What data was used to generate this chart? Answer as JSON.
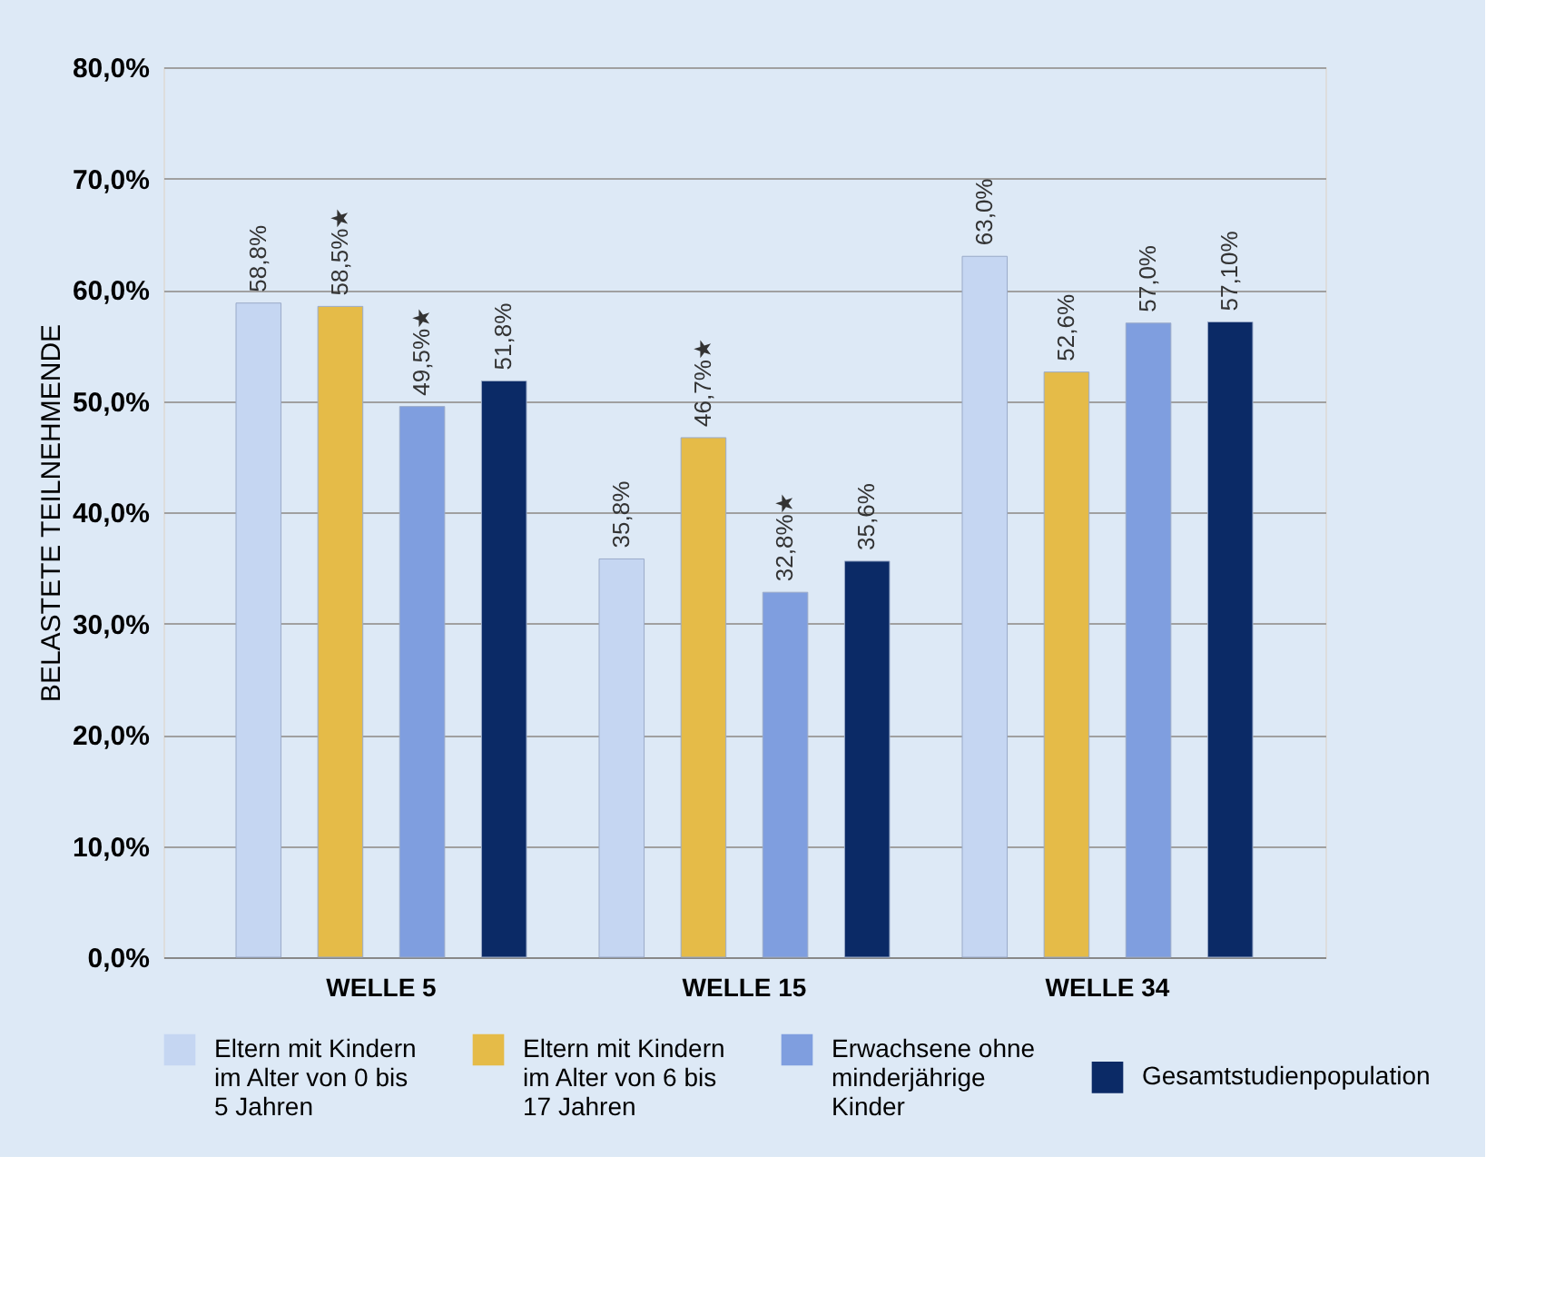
{
  "chart_data": {
    "type": "bar",
    "ylabel": "BELASTETE TEILNEHMENDE",
    "categories": [
      "WELLE 5",
      "WELLE 15",
      "WELLE 34"
    ],
    "series": [
      {
        "name": "Eltern mit Kindern im Alter von 0 bis 5 Jahren",
        "color": "#c5d6f2",
        "values": [
          58.8,
          35.8,
          63.0
        ],
        "value_labels": [
          "58,8%",
          "35,8%",
          "63,0%"
        ]
      },
      {
        "name": "Eltern mit Kindern im Alter von 6 bis 17 Jahren",
        "color": "#e5bb48",
        "values": [
          58.5,
          46.7,
          52.6
        ],
        "value_labels": [
          "58,5%★",
          "46,7%★",
          "52,6%"
        ]
      },
      {
        "name": "Erwachsene ohne minderjährige Kinder",
        "color": "#7f9edf",
        "values": [
          49.5,
          32.8,
          57.0
        ],
        "value_labels": [
          "49,5%★",
          "32,8%★",
          "57,0%"
        ]
      },
      {
        "name": "Gesamtstudienpopulation",
        "color": "#0b2a66",
        "values": [
          51.8,
          35.6,
          57.1
        ],
        "value_labels": [
          "51,8%",
          "35,6%",
          "57,10%"
        ]
      }
    ],
    "ylim": [
      0,
      80
    ],
    "yticks": [
      {
        "value": 0,
        "label": "0,0%"
      },
      {
        "value": 10,
        "label": "10,0%"
      },
      {
        "value": 20,
        "label": "20,0%"
      },
      {
        "value": 30,
        "label": "30,0%"
      },
      {
        "value": 40,
        "label": "40,0%"
      },
      {
        "value": 50,
        "label": "50,0%"
      },
      {
        "value": 60,
        "label": "60,0%"
      },
      {
        "value": 70,
        "label": "70,0%"
      },
      {
        "value": 80,
        "label": "80,0%"
      }
    ],
    "grid": "y",
    "legend": "bottom"
  }
}
